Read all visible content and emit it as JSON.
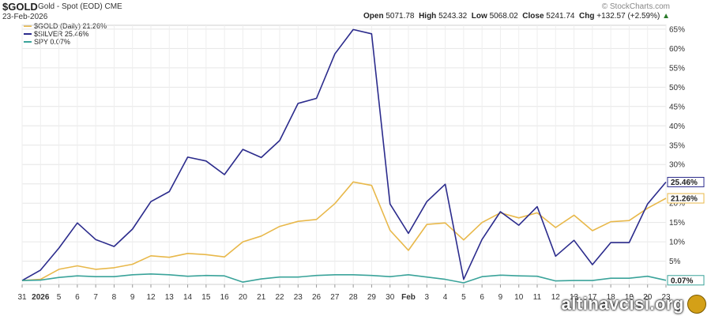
{
  "header": {
    "symbol": "$GOLD",
    "name": "Gold - Spot (EOD)",
    "exchange": "CME",
    "date": "23-Feb-2026",
    "brand": "© StockCharts.com",
    "open_label": "Open",
    "open": "5071.78",
    "high_label": "High",
    "high": "5243.32",
    "low_label": "Low",
    "low": "5068.02",
    "close_label": "Close",
    "close": "5241.74",
    "chg_label": "Chg",
    "chg": "+132.57 (+2.59%)"
  },
  "legend": [
    {
      "text": "$GOLD (Daily) 21.26%",
      "color": "#e8b84a"
    },
    {
      "text": "$SILVER 25.46%",
      "color": "#2b2b8c"
    },
    {
      "text": "SPY 0.07%",
      "color": "#3aa39a"
    }
  ],
  "watermark": "altinavcisi.org",
  "chart_data": {
    "type": "line",
    "x": [
      "31",
      "2026",
      "5",
      "6",
      "7",
      "8",
      "9",
      "12",
      "13",
      "14",
      "15",
      "16",
      "20",
      "21",
      "22",
      "23",
      "26",
      "27",
      "28",
      "29",
      "30",
      "Feb",
      "3",
      "4",
      "5",
      "6",
      "9",
      "10",
      "11",
      "12",
      "13",
      "17",
      "18",
      "19",
      "20",
      "23"
    ],
    "series": [
      {
        "name": "$GOLD (Daily)",
        "color": "#e8b84a",
        "end_label": "21.26%",
        "values": [
          0,
          0.3,
          2.9,
          3.8,
          2.9,
          3.3,
          4.2,
          6.4,
          6.0,
          7.0,
          6.7,
          6.1,
          10.0,
          11.5,
          14.0,
          15.3,
          15.8,
          19.9,
          25.5,
          24.6,
          13.0,
          7.8,
          14.5,
          14.9,
          10.5,
          15.0,
          17.5,
          16.2,
          17.5,
          13.7,
          16.9,
          12.9,
          15.2,
          15.5,
          18.7,
          21.26
        ]
      },
      {
        "name": "$SILVER",
        "color": "#2b2b8c",
        "end_label": "25.46%",
        "values": [
          0,
          2.7,
          8.4,
          14.9,
          10.6,
          8.8,
          13.3,
          20.4,
          23.0,
          31.9,
          30.9,
          27.4,
          33.9,
          31.8,
          36.2,
          45.8,
          47.1,
          58.6,
          64.9,
          63.8,
          19.8,
          12.2,
          20.4,
          24.9,
          0.3,
          10.6,
          17.8,
          14.3,
          19.1,
          6.3,
          10.4,
          4.1,
          9.8,
          9.8,
          19.8,
          25.46
        ]
      },
      {
        "name": "SPY",
        "color": "#3aa39a",
        "end_label": "0.07%",
        "values": [
          0,
          0.1,
          0.8,
          1.2,
          1.0,
          1.0,
          1.5,
          1.7,
          1.5,
          1.1,
          1.3,
          1.2,
          -0.4,
          0.4,
          0.9,
          0.9,
          1.3,
          1.5,
          1.5,
          1.3,
          1.0,
          1.5,
          0.9,
          0.3,
          -0.6,
          1.0,
          1.4,
          1.2,
          1.1,
          -0.1,
          0.0,
          0.0,
          0.6,
          0.6,
          1.1,
          0.07
        ]
      }
    ],
    "ylim": [
      -1,
      66
    ],
    "yticks": [
      5,
      10,
      15,
      20,
      25,
      30,
      35,
      40,
      45,
      50,
      55,
      60,
      65
    ],
    "ytick_suffix": "%",
    "grid": true,
    "legend_position": "top-left"
  }
}
